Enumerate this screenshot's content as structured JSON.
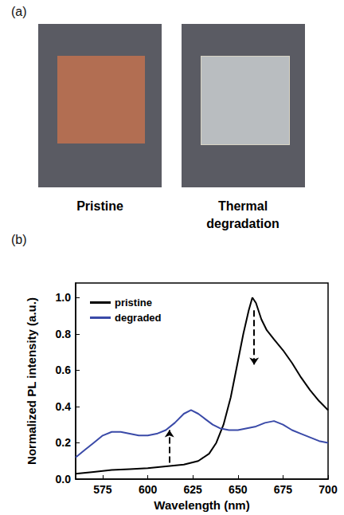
{
  "panel_a": {
    "label": "(a)",
    "captions": [
      "Pristine",
      "Thermal degradation"
    ]
  },
  "panel_b_label": "(b)",
  "chart_data": {
    "type": "line",
    "x_label": "Wavelength (nm)",
    "y_label": "Normalized PL intensity (a.u.)",
    "xlim": [
      560,
      700
    ],
    "xticks": [
      575,
      600,
      625,
      650,
      675,
      700
    ],
    "ylim": [
      0,
      1.08
    ],
    "yticks": [
      {
        "value": 0,
        "label": "0.0"
      },
      {
        "value": 0.2,
        "label": "0.2"
      },
      {
        "value": 0.4,
        "label": "0.4"
      },
      {
        "value": 0.6,
        "label": "0.6"
      },
      {
        "value": 0.8,
        "label": "0.8"
      },
      {
        "value": 1.0,
        "label": "1.0"
      }
    ],
    "legend": "upper left",
    "grid": false,
    "series": [
      {
        "name": "pristine",
        "color": "#000000",
        "x": [
          560,
          570,
          580,
          590,
          600,
          610,
          620,
          628,
          634,
          638,
          642,
          646,
          650,
          653,
          656,
          658,
          660,
          663,
          666,
          670,
          675,
          680,
          685,
          690,
          695,
          700
        ],
        "values": [
          0.03,
          0.04,
          0.05,
          0.055,
          0.06,
          0.07,
          0.08,
          0.1,
          0.14,
          0.2,
          0.3,
          0.45,
          0.65,
          0.8,
          0.93,
          1.0,
          0.97,
          0.88,
          0.82,
          0.77,
          0.71,
          0.64,
          0.56,
          0.49,
          0.43,
          0.38
        ]
      },
      {
        "name": "degraded",
        "color": "#3a4aa8",
        "x": [
          560,
          565,
          570,
          575,
          580,
          585,
          590,
          595,
          600,
          605,
          610,
          615,
          620,
          624,
          628,
          632,
          636,
          640,
          645,
          650,
          655,
          660,
          665,
          670,
          675,
          680,
          685,
          690,
          695,
          700
        ],
        "values": [
          0.12,
          0.16,
          0.2,
          0.24,
          0.26,
          0.26,
          0.25,
          0.24,
          0.24,
          0.25,
          0.27,
          0.31,
          0.36,
          0.38,
          0.36,
          0.33,
          0.3,
          0.28,
          0.27,
          0.27,
          0.28,
          0.29,
          0.31,
          0.32,
          0.3,
          0.27,
          0.25,
          0.23,
          0.21,
          0.2
        ]
      }
    ],
    "arrows": [
      {
        "x": 612,
        "from": 0.09,
        "to": 0.27
      },
      {
        "x": 659,
        "from": 0.93,
        "to": 0.63
      }
    ]
  }
}
